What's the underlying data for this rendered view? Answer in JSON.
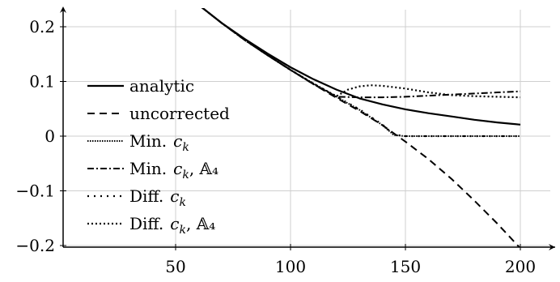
{
  "chart_data": {
    "type": "line",
    "title": "",
    "xlabel": "",
    "ylabel": "",
    "xlim": [
      0,
      210
    ],
    "ylim": [
      -0.205,
      0.24
    ],
    "grid": true,
    "legend_position": "left",
    "x_ticks": [
      {
        "value": 50,
        "label": "50"
      },
      {
        "value": 100,
        "label": "100"
      },
      {
        "value": 150,
        "label": "150"
      },
      {
        "value": 200,
        "label": "200"
      }
    ],
    "y_ticks": [
      {
        "value": 0.2,
        "label": "0.2"
      },
      {
        "value": 0.1,
        "label": "0.1"
      },
      {
        "value": 0,
        "label": "0"
      },
      {
        "value": -0.1,
        "label": "−0.1"
      },
      {
        "value": -0.2,
        "label": "−0.2"
      }
    ],
    "series": [
      {
        "name": "analytic",
        "legend_label": "analytic",
        "dash": "solid",
        "x": [
          60,
          70,
          80,
          90,
          100,
          110,
          120,
          130,
          140,
          150,
          160,
          170,
          180,
          190,
          200
        ],
        "y": [
          0.24,
          0.207,
          0.178,
          0.151,
          0.126,
          0.104,
          0.085,
          0.069,
          0.058,
          0.049,
          0.042,
          0.036,
          0.03,
          0.025,
          0.021
        ]
      },
      {
        "name": "uncorrected",
        "legend_label": "uncorrected",
        "dash": "dashed",
        "x": [
          60,
          70,
          80,
          90,
          100,
          110,
          120,
          130,
          140,
          150,
          160,
          170,
          180,
          190,
          200
        ],
        "y": [
          0.24,
          0.207,
          0.176,
          0.148,
          0.121,
          0.095,
          0.07,
          0.046,
          0.02,
          -0.01,
          -0.042,
          -0.078,
          -0.118,
          -0.16,
          -0.205
        ]
      },
      {
        "name": "Min. c_k",
        "legend_label": "Min.",
        "legend_sub": "c",
        "legend_idx": "k",
        "legend_extra": "",
        "dash": "densely-dotted",
        "x": [
          60,
          70,
          80,
          90,
          100,
          110,
          120,
          130,
          140,
          145,
          150,
          160,
          170,
          180,
          190,
          200
        ],
        "y": [
          0.24,
          0.207,
          0.176,
          0.148,
          0.121,
          0.096,
          0.072,
          0.048,
          0.02,
          0.002,
          0.0,
          0.0,
          0.0,
          0.0,
          0.0,
          0.0
        ]
      },
      {
        "name": "Min. c_k, A_4",
        "legend_label": "Min.",
        "legend_sub": "c",
        "legend_idx": "k",
        "legend_extra": ", 𝔸₄",
        "dash": "dash-dot",
        "x": [
          60,
          70,
          80,
          90,
          100,
          110,
          120,
          130,
          140,
          150,
          160,
          170,
          180,
          190,
          200
        ],
        "y": [
          0.24,
          0.207,
          0.176,
          0.148,
          0.121,
          0.095,
          0.072,
          0.071,
          0.071,
          0.072,
          0.074,
          0.076,
          0.078,
          0.08,
          0.082
        ]
      },
      {
        "name": "Diff. c_k",
        "legend_label": "Diff.",
        "legend_sub": "c",
        "legend_idx": "k",
        "legend_extra": "",
        "dash": "loosely-dotted",
        "x": [
          60,
          70,
          80,
          90,
          100,
          110,
          120,
          130,
          140,
          145,
          150,
          160,
          170,
          180,
          190,
          200
        ],
        "y": [
          0.24,
          0.207,
          0.176,
          0.148,
          0.121,
          0.096,
          0.072,
          0.049,
          0.021,
          0.003,
          0.0,
          0.0,
          0.0,
          0.0,
          0.0,
          0.0
        ]
      },
      {
        "name": "Diff. c_k, A_4",
        "legend_label": "Diff.",
        "legend_sub": "c",
        "legend_idx": "k",
        "legend_extra": ", 𝔸₄",
        "dash": "dotted",
        "x": [
          60,
          70,
          80,
          90,
          100,
          110,
          120,
          125,
          130,
          135,
          140,
          150,
          160,
          170,
          180,
          190,
          200
        ],
        "y": [
          0.24,
          0.207,
          0.176,
          0.148,
          0.121,
          0.096,
          0.073,
          0.085,
          0.091,
          0.093,
          0.092,
          0.087,
          0.08,
          0.075,
          0.073,
          0.072,
          0.071
        ]
      }
    ]
  }
}
